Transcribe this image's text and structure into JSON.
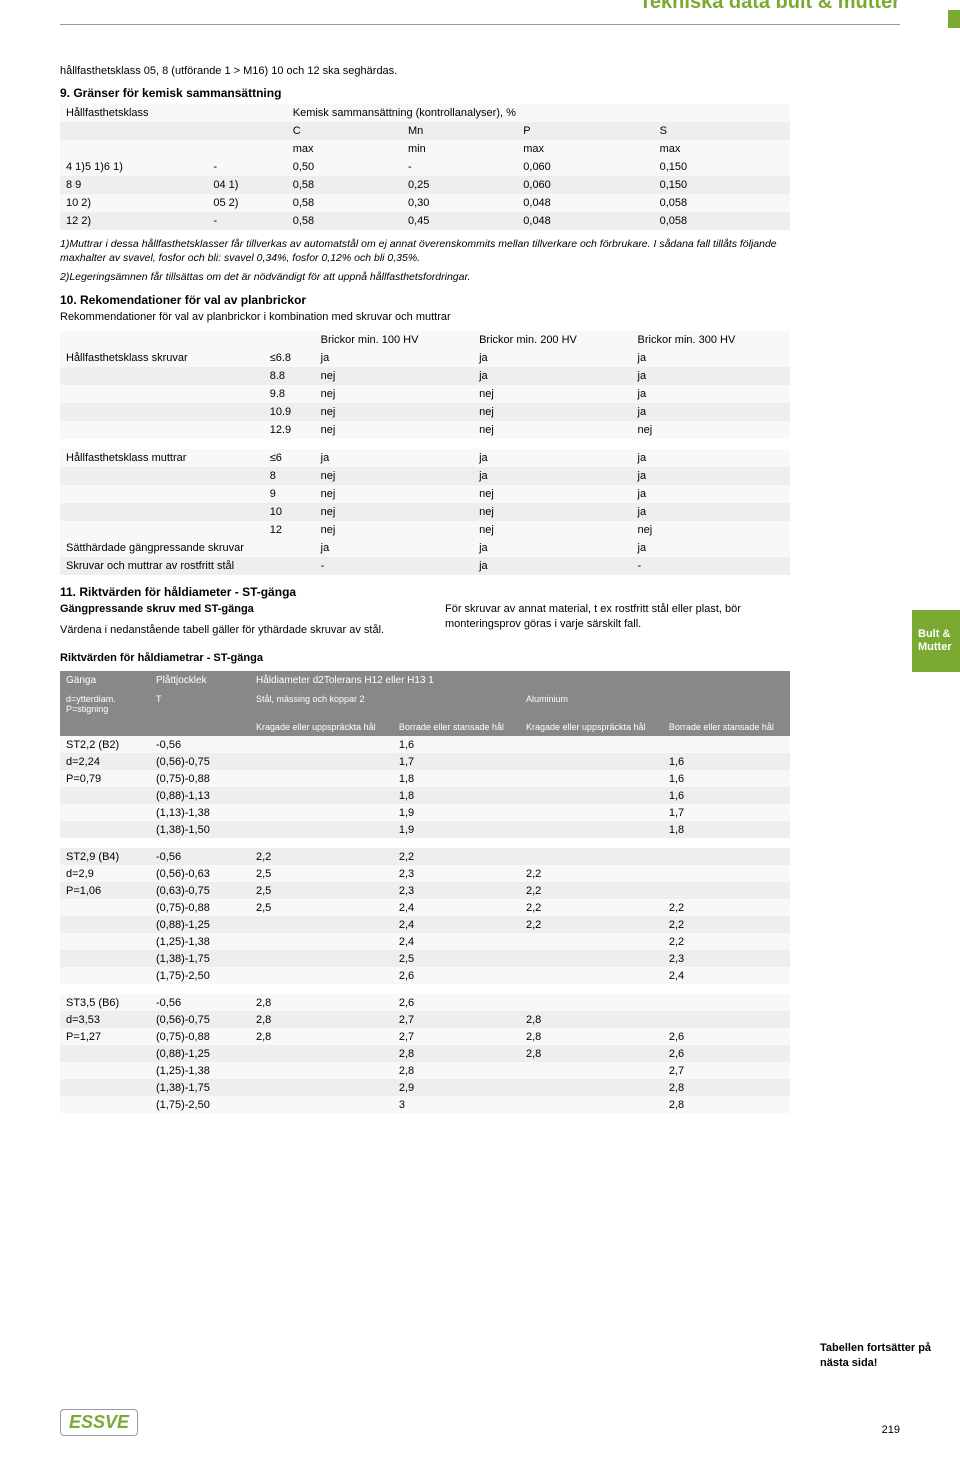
{
  "header_title": "Tekniska data bult & mutter",
  "side_tab": "Bult & Mutter",
  "intro_text": "hållfasthetsklass 05, 8 (utförande 1 > M16) 10 och 12 ska seghärdas.",
  "s9": {
    "title": "9. Gränser för kemisk sammansättning",
    "col0": "Hållfasthetsklass",
    "col_span_header": "Kemisk sammansättning (kontrollanalyser), %",
    "sub_cols_top": [
      "C",
      "Mn",
      "P",
      "S"
    ],
    "sub_cols_bot": [
      "max",
      "min",
      "max",
      "max"
    ],
    "rows": [
      [
        "4 1)5 1)6 1)",
        "-",
        "0,50",
        "-",
        "0,060",
        "0,150"
      ],
      [
        "8 9",
        "04 1)",
        "0,58",
        "0,25",
        "0,060",
        "0,150"
      ],
      [
        "10 2)",
        "05 2)",
        "0,58",
        "0,30",
        "0,048",
        "0,058"
      ],
      [
        "12 2)",
        "-",
        "0,58",
        "0,45",
        "0,048",
        "0,058"
      ]
    ]
  },
  "note1": "1)Muttrar i dessa hållfasthetsklasser får tillverkas av automatstål om ej annat överenskommits mellan tillverkare och förbrukare. I sådana fall tillåts följande maxhalter av svavel, fosfor och bli: svavel 0,34%, fosfor 0,12% och bli 0,35%.",
  "note2": "2)Legeringsämnen får tillsättas om det är nödvändigt för att uppnå hållfasthetsfordringar.",
  "s10": {
    "title": "10. Rekomendationer för val av planbrickor",
    "subtitle": "Rekommendationer för val av planbrickor i kombination med skruvar och muttrar",
    "headers": [
      "",
      "",
      "Brickor min. 100 HV",
      "Brickor min. 200 HV",
      "Brickor min. 300 HV"
    ],
    "block1_label": "Hållfasthetsklass skruvar",
    "block1": [
      [
        "≤6.8",
        "ja",
        "ja",
        "ja"
      ],
      [
        "8.8",
        "nej",
        "ja",
        "ja"
      ],
      [
        "9.8",
        "nej",
        "nej",
        "ja"
      ],
      [
        "10.9",
        "nej",
        "nej",
        "ja"
      ],
      [
        "12.9",
        "nej",
        "nej",
        "nej"
      ]
    ],
    "block2_label": "Hållfasthetsklass muttrar",
    "block2": [
      [
        "≤6",
        "ja",
        "ja",
        "ja"
      ],
      [
        "8",
        "nej",
        "ja",
        "ja"
      ],
      [
        "9",
        "nej",
        "nej",
        "ja"
      ],
      [
        "10",
        "nej",
        "nej",
        "ja"
      ],
      [
        "12",
        "nej",
        "nej",
        "nej"
      ]
    ],
    "extra": [
      [
        "Sätthärdade gängpressande skruvar",
        "",
        "ja",
        "ja",
        "ja"
      ],
      [
        "Skruvar och muttrar av rostfritt stål",
        "",
        "-",
        "ja",
        "-"
      ]
    ]
  },
  "s11": {
    "title": "11. Riktvärden för håldiameter - ST-gänga",
    "left_h": "Gängpressande skruv med ST-gänga",
    "left_p": "Värdena i nedanstående tabell gäller för ythärdade skruvar av stål.",
    "right_p": "För skruvar av annat material, t ex rostfritt stål eller plast, bör monteringsprov göras i varje särskilt fall.",
    "table_title": "Riktvärden för håldiametrar - ST-gänga",
    "h_ganga": "Gänga",
    "h_plat": "Plåttjocklek",
    "h_diam": "Håldiameter d2Tolerans H12 eller H13 1",
    "h_d": "d=ytterdiam. P=stigning",
    "h_t": "T",
    "h_mat1": "Stål, mässing och koppar 2",
    "h_mat2": "Aluminium",
    "h_k1": "Kragade eller uppspräckta hål",
    "h_b1": "Borrade eller stansade hål",
    "h_k2": "Kragade eller uppspräckta hål",
    "h_b2": "Borrade eller stansade hål",
    "groups": [
      {
        "lead": [
          "ST2,2 (B2)",
          "d=2,24",
          "P=0,79"
        ],
        "rows": [
          [
            "-0,56",
            "",
            "1,6",
            "",
            ""
          ],
          [
            "(0,56)-0,75",
            "",
            "1,7",
            "",
            "1,6"
          ],
          [
            "(0,75)-0,88",
            "",
            "1,8",
            "",
            "1,6"
          ],
          [
            "(0,88)-1,13",
            "",
            "1,8",
            "",
            "1,6"
          ],
          [
            "(1,13)-1,38",
            "",
            "1,9",
            "",
            "1,7"
          ],
          [
            "(1,38)-1,50",
            "",
            "1,9",
            "",
            "1,8"
          ]
        ]
      },
      {
        "lead": [
          "ST2,9 (B4)",
          "d=2,9",
          "P=1,06"
        ],
        "rows": [
          [
            "-0,56",
            "2,2",
            "2,2",
            "",
            ""
          ],
          [
            "(0,56)-0,63",
            "2,5",
            "2,3",
            "2,2",
            ""
          ],
          [
            "(0,63)-0,75",
            "2,5",
            "2,3",
            "2,2",
            ""
          ],
          [
            "(0,75)-0,88",
            "2,5",
            "2,4",
            "2,2",
            "2,2"
          ],
          [
            "(0,88)-1,25",
            "",
            "2,4",
            "2,2",
            "2,2"
          ],
          [
            "(1,25)-1,38",
            "",
            "2,4",
            "",
            "2,2"
          ],
          [
            "(1,38)-1,75",
            "",
            "2,5",
            "",
            "2,3"
          ],
          [
            "(1,75)-2,50",
            "",
            "2,6",
            "",
            "2,4"
          ]
        ]
      },
      {
        "lead": [
          "ST3,5 (B6)",
          "d=3,53",
          "P=1,27"
        ],
        "rows": [
          [
            "-0,56",
            "2,8",
            "2,6",
            "",
            ""
          ],
          [
            "(0,56)-0,75",
            "2,8",
            "2,7",
            "2,8",
            ""
          ],
          [
            "(0,75)-0,88",
            "2,8",
            "2,7",
            "2,8",
            "2,6"
          ],
          [
            "(0,88)-1,25",
            "",
            "2,8",
            "2,8",
            "2,6"
          ],
          [
            "(1,25)-1,38",
            "",
            "2,8",
            "",
            "2,7"
          ],
          [
            "(1,38)-1,75",
            "",
            "2,9",
            "",
            "2,8"
          ],
          [
            "(1,75)-2,50",
            "",
            "3",
            "",
            "2,8"
          ]
        ]
      }
    ]
  },
  "continue_note": "Tabellen fortsätter på nästa sida!",
  "page_number": "219",
  "logo_text": "ESSVE"
}
